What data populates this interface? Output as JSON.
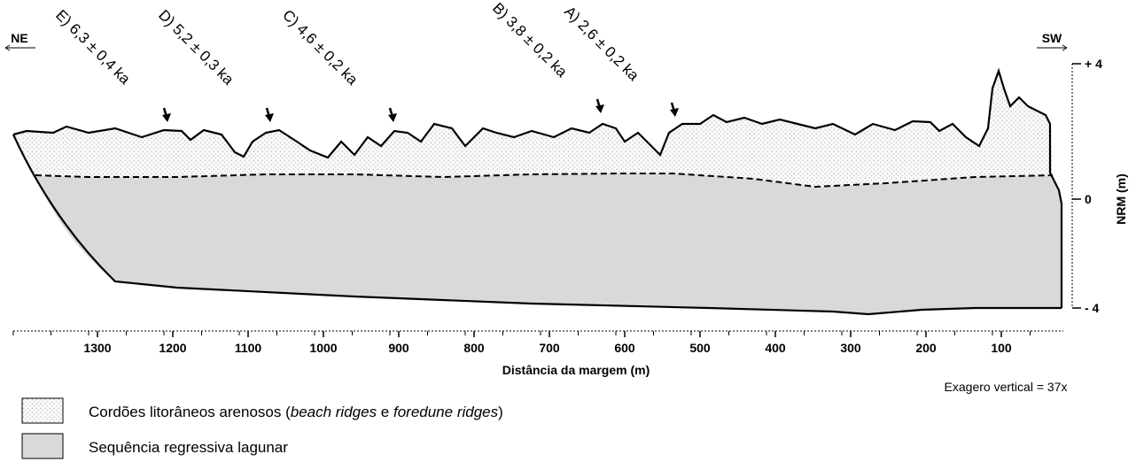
{
  "header": {
    "left": "NE",
    "right": "SW"
  },
  "samples": [
    {
      "label": "E) 6,3 ± 0,4 ka"
    },
    {
      "label": "D) 5,2 ± 0,3 ka"
    },
    {
      "label": "C) 4,6 ± 0,2 ka"
    },
    {
      "label": "B) 3,8 ± 0,2 ka"
    },
    {
      "label": "A) 2,6 ± 0,2 ka"
    }
  ],
  "x_axis": {
    "title": "Distância da margem (m)",
    "ticks": [
      "1300",
      "1200",
      "1100",
      "1000",
      "900",
      "800",
      "700",
      "600",
      "500",
      "400",
      "300",
      "200",
      "100"
    ]
  },
  "y_axis": {
    "title": "NRM (m)",
    "ticks": [
      "+ 4",
      "0",
      "- 4"
    ]
  },
  "note": "Exagero vertical = 37x",
  "legend": [
    {
      "parts": [
        "Cordões litorâneos arenosos (",
        "beach ridges",
        " e ",
        "foredune ridges",
        ")"
      ]
    },
    {
      "parts": [
        "Sequência regressiva lagunar"
      ]
    }
  ]
}
